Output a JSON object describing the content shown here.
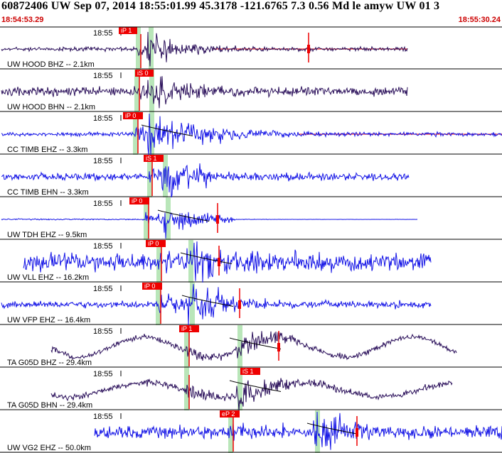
{
  "header": {
    "title": "60872406 UW Sep 07, 2014 18:55:01.99   45.3178 -121.6765  7.3 0.56 Md le amyw UW 01   3",
    "start_time": "18:54:53.29",
    "end_time": "18:55:30.24"
  },
  "colors": {
    "trace_dark": "#2a0f5a",
    "trace_blue": "#1414e6",
    "pick": "#ee0000",
    "window": "#b9e6b9",
    "divider": "#000000"
  },
  "traces": [
    {
      "station": "UW HOOD BHZ -- 2.1km",
      "time_label": "18:55",
      "pick_label": "iP 1",
      "color": "dark",
      "amp": 0.55,
      "noise": 0.06,
      "kind": "short"
    },
    {
      "station": "UW HOOD BHN -- 2.1km",
      "time_label": "18:55",
      "pick_label": "iS 0",
      "color": "dark",
      "amp": 0.75,
      "noise": 0.1,
      "kind": "short"
    },
    {
      "station": "CC TIMB EHZ -- 3.3km",
      "time_label": "18:55",
      "pick_label": "iP 0",
      "color": "blue",
      "amp": 0.8,
      "noise": 0.04,
      "kind": "long"
    },
    {
      "station": "CC TIMB EHN -- 3.3km",
      "time_label": "18:55",
      "pick_label": "iS 1",
      "color": "blue",
      "amp": 0.75,
      "noise": 0.08,
      "kind": "short"
    },
    {
      "station": "UW TDH EHZ -- 9.5km",
      "time_label": "18:55",
      "pick_label": "iP 0",
      "color": "blue",
      "amp": 0.55,
      "noise": 0.02,
      "kind": "flat"
    },
    {
      "station": "UW VLL EHZ -- 16.2km",
      "time_label": "18:55",
      "pick_label": "iP 0",
      "color": "blue",
      "amp": 0.85,
      "noise": 0.18,
      "kind": "short"
    },
    {
      "station": "UW VFP EHZ -- 16.4km",
      "time_label": "18:55",
      "pick_label": "iP 0",
      "color": "blue",
      "amp": 0.95,
      "noise": 0.06,
      "kind": "short"
    },
    {
      "station": "TA G05D BHZ -- 29.4km",
      "time_label": "18:55",
      "pick_label": "iP 1",
      "color": "dark",
      "amp": 0.55,
      "noise": 0.08,
      "kind": "wave"
    },
    {
      "station": "TA G05D BHN -- 29.4km",
      "time_label": "18:55",
      "pick_label": "iS 1",
      "color": "dark",
      "amp": 0.65,
      "noise": 0.08,
      "kind": "wave2"
    },
    {
      "station": "UW VG2 EHZ -- 50.0km",
      "time_label": "18:55",
      "pick_label": "eP 2",
      "color": "blue",
      "amp": 0.85,
      "noise": 0.12,
      "kind": "wide"
    }
  ]
}
